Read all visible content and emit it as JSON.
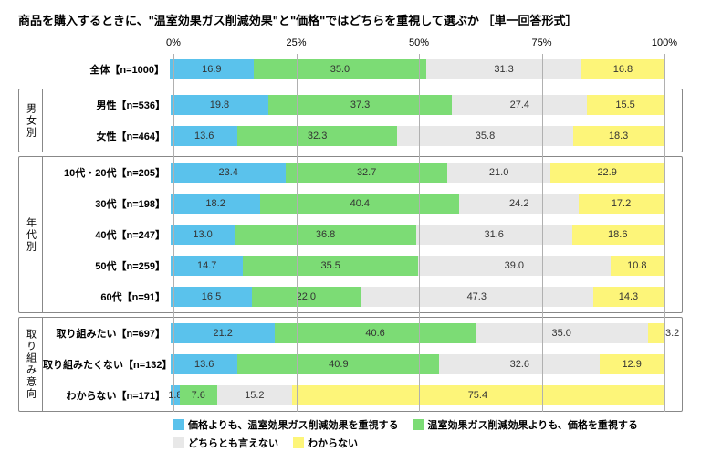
{
  "title": "商品を購入するときに、\"温室効果ガス削減効果\"と\"価格\"ではどちらを重視して選ぶか ［単一回答形式］",
  "chart": {
    "type": "stacked-bar-horizontal",
    "xlim": [
      0,
      100
    ],
    "xticks": [
      0,
      25,
      50,
      75,
      100
    ],
    "xtick_labels": [
      "0%",
      "25%",
      "50%",
      "75%",
      "100%"
    ],
    "background_color": "#ffffff",
    "grid_color": "#b0b0b0",
    "label_fontsize": 11,
    "series": [
      {
        "key": "s1",
        "label": "価格よりも、温室効果ガス削減効果を重視する",
        "color": "#5ac2ec"
      },
      {
        "key": "s2",
        "label": "温室効果ガス削減効果よりも、価格を重視する",
        "color": "#7cdc75"
      },
      {
        "key": "s3",
        "label": "どちらとも言えない",
        "color": "#e8e8e8"
      },
      {
        "key": "s4",
        "label": "わからない",
        "color": "#fdf579"
      }
    ],
    "groups": [
      {
        "name": "",
        "rows": [
          {
            "label": "全体【n=1000】",
            "values": [
              16.9,
              35.0,
              31.3,
              16.8
            ]
          }
        ]
      },
      {
        "name": "男女別",
        "rows": [
          {
            "label": "男性【n=536】",
            "values": [
              19.8,
              37.3,
              27.4,
              15.5
            ]
          },
          {
            "label": "女性【n=464】",
            "values": [
              13.6,
              32.3,
              35.8,
              18.3
            ]
          }
        ]
      },
      {
        "name": "年代別",
        "rows": [
          {
            "label": "10代・20代【n=205】",
            "values": [
              23.4,
              32.7,
              21.0,
              22.9
            ]
          },
          {
            "label": "30代【n=198】",
            "values": [
              18.2,
              40.4,
              24.2,
              17.2
            ]
          },
          {
            "label": "40代【n=247】",
            "values": [
              13.0,
              36.8,
              31.6,
              18.6
            ]
          },
          {
            "label": "50代【n=259】",
            "values": [
              14.7,
              35.5,
              39.0,
              10.8
            ]
          },
          {
            "label": "60代【n=91】",
            "values": [
              16.5,
              22.0,
              47.3,
              14.3
            ]
          }
        ]
      },
      {
        "name": "取り組み意向",
        "rows": [
          {
            "label": "取り組みたい【n=697】",
            "values": [
              21.2,
              40.6,
              35.0,
              3.2
            ]
          },
          {
            "label": "取り組みたくない【n=132】",
            "values": [
              13.6,
              40.9,
              32.6,
              12.9
            ]
          },
          {
            "label": "わからない【n=171】",
            "values": [
              1.8,
              7.6,
              15.2,
              75.4
            ]
          }
        ]
      }
    ]
  }
}
